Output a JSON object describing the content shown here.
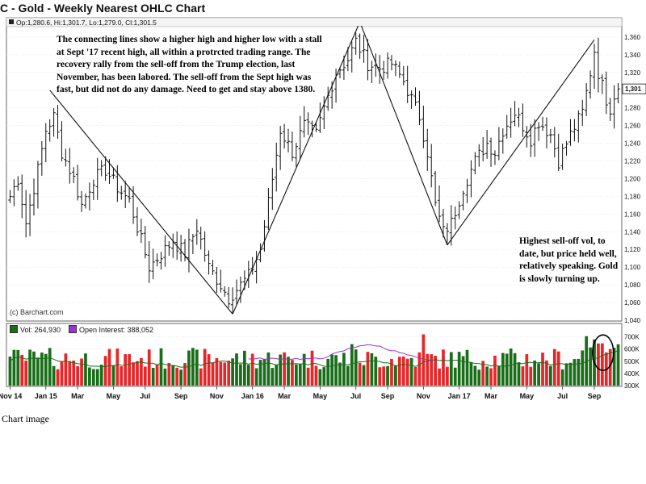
{
  "title": "C - Gold - Weekly Nearest OHLC Chart",
  "caption": "Chart image",
  "ohlc_label": "Op:1,280.6, Hi:1,301.7, Lo:1,279.0, Cl:1,301.5",
  "credit": "(c) Barchart.com",
  "last_price_label": "1,301",
  "annotations": {
    "main": [
      "The connecting lines show a higher high and higher low with a stall",
      "at Sept '17 recent high, all within a protrcted trading range.  The",
      "recovery rally from the sell-off from the Trump election, last",
      "November, has been labored.  The sell-off from the Sept high was",
      "fast, but did not do any damage.   Need to get and stay above 1380."
    ],
    "volume": [
      "Highest sell-off vol, to",
      "date, but price held well,",
      "relatively speaking.  Gold",
      "is slowly turning up."
    ]
  },
  "legend": {
    "vol_label": "Vol: 264,930",
    "oi_label": "Open Interest: 388,052",
    "vol_color": "#1a6e1a",
    "oi_color": "#9b30d9"
  },
  "colors": {
    "up_bar": "#1a6e1a",
    "down_bar": "#e8262a",
    "open_interest": "#9b30d9",
    "avg_line": "#1a6e1a",
    "grid": "#dddddd"
  },
  "chart_data": {
    "type": "ohlc",
    "price_axis": {
      "ylim": [
        1040,
        1370
      ],
      "ticks": [
        "1,040",
        "1,060",
        "1,080",
        "1,100",
        "1,120",
        "1,140",
        "1,160",
        "1,180",
        "1,200",
        "1,220",
        "1,240",
        "1,260",
        "1,280",
        "1,300",
        "1,320",
        "1,340",
        "1,360"
      ]
    },
    "volume_axis": {
      "ylim": [
        300000,
        730000
      ],
      "ticks": [
        "300K",
        "400K",
        "500K",
        "600K",
        "700K"
      ]
    },
    "x_axis": {
      "labels": [
        "Nov 14",
        "Jan 15",
        "Mar",
        "May",
        "Jul",
        "Sep",
        "Nov",
        "Jan 16",
        "Mar",
        "May",
        "Jul",
        "Sep",
        "Nov",
        "Jan 17",
        "Mar",
        "May",
        "Jul",
        "Sep"
      ],
      "label_week_index": [
        0,
        9,
        17,
        26,
        34,
        43,
        52,
        61,
        69,
        78,
        87,
        95,
        104,
        113,
        121,
        130,
        139,
        147
      ]
    },
    "price_anchors": [
      {
        "week": 0,
        "price": 1180
      },
      {
        "week": 2,
        "price": 1200
      },
      {
        "week": 4,
        "price": 1150
      },
      {
        "week": 7,
        "price": 1210
      },
      {
        "week": 9,
        "price": 1255
      },
      {
        "week": 11,
        "price": 1270
      },
      {
        "week": 13,
        "price": 1230
      },
      {
        "week": 16,
        "price": 1200
      },
      {
        "week": 18,
        "price": 1170
      },
      {
        "week": 21,
        "price": 1200
      },
      {
        "week": 24,
        "price": 1210
      },
      {
        "week": 27,
        "price": 1190
      },
      {
        "week": 30,
        "price": 1175
      },
      {
        "week": 33,
        "price": 1130
      },
      {
        "week": 35,
        "price": 1100
      },
      {
        "week": 38,
        "price": 1115
      },
      {
        "week": 41,
        "price": 1130
      },
      {
        "week": 44,
        "price": 1115
      },
      {
        "week": 47,
        "price": 1145
      },
      {
        "week": 50,
        "price": 1100
      },
      {
        "week": 53,
        "price": 1080
      },
      {
        "week": 55,
        "price": 1065
      },
      {
        "week": 57,
        "price": 1075
      },
      {
        "week": 60,
        "price": 1090
      },
      {
        "week": 63,
        "price": 1120
      },
      {
        "week": 66,
        "price": 1200
      },
      {
        "week": 68,
        "price": 1255
      },
      {
        "week": 71,
        "price": 1230
      },
      {
        "week": 74,
        "price": 1260
      },
      {
        "week": 77,
        "price": 1250
      },
      {
        "week": 79,
        "price": 1280
      },
      {
        "week": 82,
        "price": 1320
      },
      {
        "week": 85,
        "price": 1335
      },
      {
        "week": 87,
        "price": 1355
      },
      {
        "week": 90,
        "price": 1330
      },
      {
        "week": 93,
        "price": 1325
      },
      {
        "week": 96,
        "price": 1330
      },
      {
        "week": 99,
        "price": 1310
      },
      {
        "week": 101,
        "price": 1290
      },
      {
        "week": 103,
        "price": 1270
      },
      {
        "week": 105,
        "price": 1230
      },
      {
        "week": 107,
        "price": 1170
      },
      {
        "week": 109,
        "price": 1140
      },
      {
        "week": 111,
        "price": 1150
      },
      {
        "week": 114,
        "price": 1190
      },
      {
        "week": 117,
        "price": 1220
      },
      {
        "week": 120,
        "price": 1240
      },
      {
        "week": 122,
        "price": 1230
      },
      {
        "week": 124,
        "price": 1255
      },
      {
        "week": 127,
        "price": 1275
      },
      {
        "week": 129,
        "price": 1260
      },
      {
        "week": 131,
        "price": 1245
      },
      {
        "week": 133,
        "price": 1265
      },
      {
        "week": 136,
        "price": 1250
      },
      {
        "week": 138,
        "price": 1220
      },
      {
        "week": 141,
        "price": 1250
      },
      {
        "week": 144,
        "price": 1275
      },
      {
        "week": 146,
        "price": 1320
      },
      {
        "week": 147,
        "price": 1345
      },
      {
        "week": 148,
        "price": 1320
      },
      {
        "week": 150,
        "price": 1290
      },
      {
        "week": 151,
        "price": 1280
      },
      {
        "week": 152,
        "price": 1295
      },
      {
        "week": 153,
        "price": 1301.5
      }
    ],
    "trend_lines": [
      {
        "from": {
          "week": 10,
          "price": 1300
        },
        "to": {
          "week": 56,
          "price": 1047
        }
      },
      {
        "from": {
          "week": 56,
          "price": 1047
        },
        "to": {
          "week": 88,
          "price": 1377
        }
      },
      {
        "from": {
          "week": 88,
          "price": 1377
        },
        "to": {
          "week": 110,
          "price": 1125
        }
      },
      {
        "from": {
          "week": 110,
          "price": 1125
        },
        "to": {
          "week": 147,
          "price": 1357
        }
      }
    ],
    "highlight_circle": {
      "week": 150,
      "volume": 570000
    }
  }
}
